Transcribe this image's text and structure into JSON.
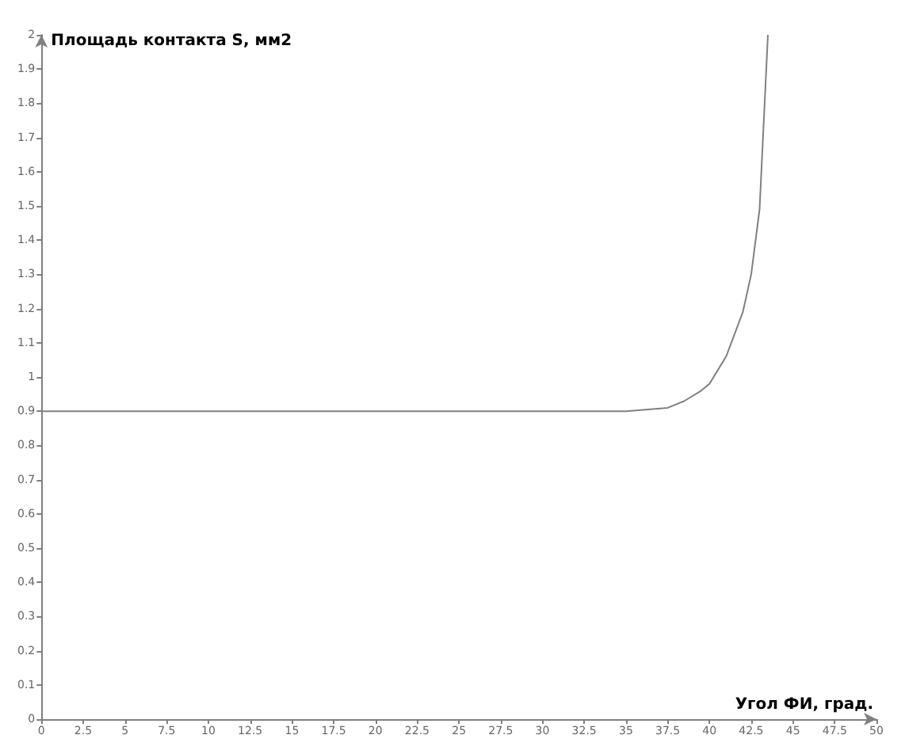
{
  "chart_data": {
    "type": "line",
    "xlabel": "Угол ФИ, град.",
    "ylabel": "Площадь контакта S, мм2",
    "x": [
      0,
      35,
      37.5,
      38.5,
      39.5,
      40,
      41,
      42,
      42.5,
      43,
      43.5
    ],
    "series": [
      {
        "color": "#808080",
        "values": [
          0.9,
          0.9,
          0.91,
          0.93,
          0.96,
          0.98,
          1.06,
          1.19,
          1.3,
          1.49,
          2.0
        ]
      }
    ],
    "xlim": [
      0,
      50
    ],
    "xticks": [
      0,
      2.5,
      5,
      7.5,
      10,
      12.5,
      15,
      17.5,
      20,
      22.5,
      25,
      27.5,
      30,
      32.5,
      35,
      37.5,
      40,
      42.5,
      45,
      47.5,
      50
    ],
    "ylim": [
      0,
      2
    ],
    "yticks": [
      0,
      0.1,
      0.2,
      0.3,
      0.4,
      0.5,
      0.6,
      0.7,
      0.8,
      0.9,
      1,
      1.1,
      1.2,
      1.3,
      1.4,
      1.5,
      1.6,
      1.7,
      1.8,
      1.9,
      2
    ],
    "grid": false,
    "marker": "none",
    "line_style": "solid"
  }
}
